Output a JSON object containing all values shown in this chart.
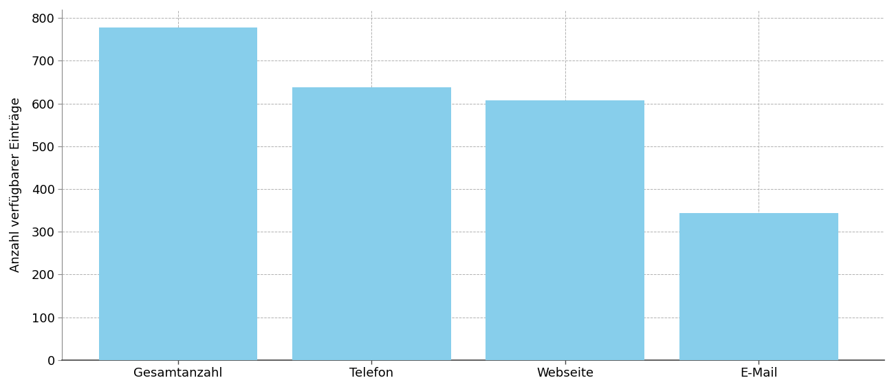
{
  "categories": [
    "Gesamtanzahl",
    "Telefon",
    "Webseite",
    "E-Mail"
  ],
  "values": [
    778,
    638,
    608,
    343
  ],
  "bar_color": "#87CEEB",
  "bar_edgecolor": "none",
  "ylabel": "Anzahl verfügbarer Einträge",
  "ylim": [
    0,
    820
  ],
  "yticks": [
    0,
    100,
    200,
    300,
    400,
    500,
    600,
    700,
    800
  ],
  "background_color": "#ffffff",
  "grid_color": "#b0b0b0",
  "tick_fontsize": 13,
  "ylabel_fontsize": 13,
  "bar_width": 0.82,
  "xlim_left": -0.6,
  "xlim_right": 3.65
}
